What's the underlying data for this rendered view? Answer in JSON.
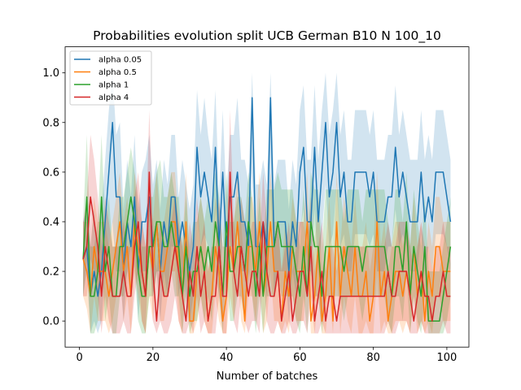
{
  "chart_data": {
    "type": "line",
    "title": "Probabilities evolution split UCB German B10 N 100_10",
    "xlabel": "Number of batches",
    "ylabel": "",
    "xlim": [
      -3.9,
      106
    ],
    "ylim": [
      -0.105,
      1.105
    ],
    "xticks": [
      0,
      20,
      40,
      60,
      80,
      100
    ],
    "yticks": [
      0.0,
      0.2,
      0.4,
      0.6,
      0.8,
      1.0
    ],
    "xtick_labels": [
      "0",
      "20",
      "40",
      "60",
      "80",
      "100"
    ],
    "ytick_labels": [
      "0.0",
      "0.2",
      "0.4",
      "0.6",
      "0.8",
      "1.0"
    ],
    "grid": false,
    "legend_position": "top-left",
    "x_start": 1,
    "series": [
      {
        "name": "alpha 0.05",
        "color": "#1f77b4",
        "values": [
          0.25,
          0.3,
          0.1,
          0.2,
          0.1,
          0.2,
          0.4,
          0.6,
          0.8,
          0.5,
          0.5,
          0.2,
          0.4,
          0.3,
          0.5,
          0.2,
          0.4,
          0.4,
          0.5,
          0.3,
          0.4,
          0.2,
          0.4,
          0.3,
          0.5,
          0.5,
          0.3,
          0.4,
          0.3,
          0.2,
          0.3,
          0.7,
          0.5,
          0.6,
          0.5,
          0.4,
          0.7,
          0.3,
          0.6,
          0.3,
          0.5,
          0.5,
          0.6,
          0.4,
          0.4,
          0.3,
          0.9,
          0.3,
          0.3,
          0.4,
          0.3,
          0.9,
          0.3,
          0.4,
          0.4,
          0.4,
          0.2,
          0.4,
          0.3,
          0.6,
          0.7,
          0.4,
          0.4,
          0.7,
          0.4,
          0.6,
          0.8,
          0.5,
          0.6,
          0.8,
          0.5,
          0.6,
          0.4,
          0.4,
          0.6,
          0.6,
          0.6,
          0.6,
          0.5,
          0.6,
          0.4,
          0.4,
          0.4,
          0.5,
          0.5,
          0.7,
          0.5,
          0.6,
          0.5,
          0.4,
          0.4,
          0.4,
          0.6,
          0.4,
          0.5,
          0.4,
          0.6,
          0.6,
          0.6,
          0.5,
          0.4
        ],
        "lower": [
          0.1,
          0.2,
          -0.05,
          0.0,
          -0.05,
          0.0,
          0.2,
          0.3,
          0.4,
          0.2,
          0.2,
          0.0,
          0.2,
          0.1,
          0.3,
          0.0,
          0.2,
          0.2,
          0.3,
          0.1,
          0.2,
          0.0,
          0.2,
          0.1,
          0.3,
          0.3,
          0.1,
          0.2,
          0.1,
          0.0,
          0.1,
          0.45,
          0.3,
          0.35,
          0.3,
          0.2,
          0.45,
          0.1,
          0.35,
          0.1,
          0.3,
          0.3,
          0.35,
          0.2,
          0.2,
          0.1,
          0.6,
          0.1,
          0.1,
          0.2,
          0.1,
          0.55,
          0.1,
          0.2,
          0.2,
          0.2,
          0.0,
          0.2,
          0.1,
          0.35,
          0.45,
          0.2,
          0.2,
          0.45,
          0.2,
          0.35,
          0.55,
          0.3,
          0.35,
          0.55,
          0.3,
          0.35,
          0.2,
          0.2,
          0.35,
          0.35,
          0.35,
          0.35,
          0.3,
          0.35,
          0.2,
          0.2,
          0.2,
          0.3,
          0.3,
          0.45,
          0.3,
          0.35,
          0.3,
          0.2,
          0.2,
          0.2,
          0.35,
          0.2,
          0.3,
          0.2,
          0.35,
          0.35,
          0.35,
          0.3,
          0.2
        ],
        "upper": [
          0.4,
          0.45,
          0.3,
          0.45,
          0.3,
          0.45,
          0.65,
          0.85,
          1.0,
          0.75,
          0.8,
          0.45,
          0.65,
          0.5,
          0.75,
          0.45,
          0.6,
          0.65,
          0.75,
          0.55,
          0.65,
          0.45,
          0.65,
          0.55,
          0.75,
          0.75,
          0.5,
          0.65,
          0.55,
          0.45,
          0.55,
          0.93,
          0.75,
          0.9,
          0.75,
          0.65,
          0.93,
          0.5,
          0.85,
          0.5,
          0.75,
          0.75,
          0.9,
          0.65,
          0.65,
          0.55,
          1.0,
          0.55,
          0.55,
          0.65,
          0.55,
          1.0,
          0.55,
          0.65,
          0.65,
          0.65,
          0.45,
          0.65,
          0.55,
          0.85,
          0.95,
          0.65,
          0.65,
          0.95,
          0.65,
          0.85,
          1.0,
          0.75,
          0.85,
          1.0,
          0.75,
          0.85,
          0.65,
          0.65,
          0.85,
          0.85,
          0.85,
          0.85,
          0.75,
          0.85,
          0.65,
          0.65,
          0.65,
          0.75,
          0.75,
          0.95,
          0.75,
          0.85,
          0.75,
          0.65,
          0.65,
          0.65,
          0.85,
          0.65,
          0.75,
          0.65,
          0.85,
          0.85,
          0.85,
          0.75,
          0.65
        ]
      },
      {
        "name": "alpha 0.5",
        "color": "#ff7f0e",
        "values": [
          0.25,
          0.2,
          0.1,
          0.3,
          0.2,
          0.2,
          0.2,
          0.1,
          0.2,
          0.3,
          0.4,
          0.2,
          0.3,
          0.1,
          0.4,
          0.3,
          0.2,
          0.1,
          0.3,
          0.2,
          0.4,
          0.2,
          0.2,
          0.3,
          0.4,
          0.4,
          0.2,
          0.1,
          0.4,
          0.0,
          0.0,
          0.2,
          0.3,
          0.2,
          0.0,
          0.1,
          0.3,
          0.2,
          0.0,
          0.1,
          0.3,
          0.2,
          0.4,
          0.2,
          0.0,
          0.3,
          0.3,
          0.2,
          0.4,
          0.1,
          0.2,
          0.4,
          0.2,
          0.2,
          0.0,
          0.2,
          0.1,
          0.3,
          0.2,
          0.2,
          0.2,
          0.4,
          0.0,
          0.1,
          0.3,
          0.0,
          0.1,
          0.3,
          0.0,
          0.4,
          0.1,
          0.3,
          0.2,
          0.1,
          0.3,
          0.1,
          0.1,
          0.2,
          0.0,
          0.1,
          0.4,
          0.1,
          0.2,
          0.0,
          0.1,
          0.2,
          0.2,
          0.1,
          0.2,
          0.1,
          0.3,
          0.1,
          0.2,
          0.0,
          0.2,
          0.1,
          0.3,
          0.3,
          0.2,
          0.2,
          0.2
        ],
        "lower": [
          0.1,
          0.05,
          -0.05,
          0.1,
          0.0,
          0.0,
          0.0,
          -0.05,
          0.0,
          0.1,
          0.2,
          0.0,
          0.1,
          -0.05,
          0.2,
          0.1,
          0.0,
          -0.05,
          0.1,
          0.0,
          0.2,
          0.0,
          0.0,
          0.1,
          0.2,
          0.2,
          0.0,
          -0.05,
          0.2,
          -0.05,
          -0.05,
          0.0,
          0.1,
          0.0,
          -0.05,
          -0.05,
          0.1,
          0.0,
          -0.05,
          -0.05,
          0.1,
          0.0,
          0.2,
          0.0,
          -0.05,
          0.1,
          0.1,
          0.0,
          0.2,
          -0.05,
          0.0,
          0.2,
          0.0,
          0.0,
          -0.05,
          0.0,
          -0.05,
          0.1,
          0.0,
          0.0,
          0.0,
          0.2,
          -0.05,
          -0.05,
          0.1,
          -0.05,
          -0.05,
          0.1,
          -0.05,
          0.2,
          -0.05,
          0.1,
          0.0,
          -0.05,
          0.1,
          -0.05,
          -0.05,
          0.0,
          -0.05,
          -0.05,
          0.2,
          -0.05,
          0.0,
          -0.05,
          -0.05,
          0.0,
          0.0,
          -0.05,
          0.0,
          -0.05,
          0.1,
          -0.05,
          0.0,
          -0.05,
          0.0,
          -0.05,
          0.1,
          0.1,
          0.0,
          0.0,
          0.0
        ],
        "upper": [
          0.4,
          0.4,
          0.3,
          0.5,
          0.4,
          0.4,
          0.4,
          0.3,
          0.4,
          0.5,
          0.6,
          0.4,
          0.5,
          0.3,
          0.6,
          0.5,
          0.4,
          0.3,
          0.5,
          0.4,
          0.6,
          0.4,
          0.4,
          0.5,
          0.6,
          0.6,
          0.4,
          0.3,
          0.6,
          0.2,
          0.2,
          0.4,
          0.5,
          0.4,
          0.2,
          0.3,
          0.5,
          0.4,
          0.2,
          0.3,
          0.5,
          0.4,
          0.6,
          0.4,
          0.2,
          0.5,
          0.5,
          0.4,
          0.6,
          0.3,
          0.4,
          0.6,
          0.4,
          0.4,
          0.2,
          0.4,
          0.3,
          0.5,
          0.4,
          0.4,
          0.4,
          0.6,
          0.2,
          0.3,
          0.5,
          0.2,
          0.3,
          0.5,
          0.2,
          0.6,
          0.3,
          0.5,
          0.4,
          0.3,
          0.5,
          0.3,
          0.3,
          0.4,
          0.2,
          0.3,
          0.6,
          0.3,
          0.4,
          0.2,
          0.3,
          0.4,
          0.4,
          0.3,
          0.4,
          0.3,
          0.5,
          0.3,
          0.4,
          0.2,
          0.4,
          0.3,
          0.5,
          0.5,
          0.4,
          0.4,
          0.4
        ]
      },
      {
        "name": "alpha 1",
        "color": "#2ca02c",
        "values": [
          0.25,
          0.5,
          0.1,
          0.1,
          0.2,
          0.5,
          0.2,
          0.3,
          0.1,
          0.1,
          0.3,
          0.3,
          0.4,
          0.5,
          0.4,
          0.2,
          0.1,
          0.1,
          0.3,
          0.3,
          0.4,
          0.4,
          0.3,
          0.3,
          0.4,
          0.3,
          0.3,
          0.1,
          0.3,
          0.1,
          0.2,
          0.2,
          0.3,
          0.2,
          0.3,
          0.2,
          0.4,
          0.3,
          0.1,
          0.4,
          0.2,
          0.2,
          0.3,
          0.3,
          0.2,
          0.4,
          0.3,
          0.1,
          0.3,
          0.1,
          0.3,
          0.3,
          0.3,
          0.4,
          0.3,
          0.3,
          0.3,
          0.3,
          0.2,
          0.1,
          0.3,
          0.1,
          0.4,
          0.3,
          0.3,
          0.1,
          0.3,
          0.3,
          0.3,
          0.3,
          0.3,
          0.2,
          0.3,
          0.3,
          0.3,
          0.3,
          0.2,
          0.3,
          0.3,
          0.3,
          0.3,
          0.3,
          0.3,
          0.2,
          0.1,
          0.3,
          0.3,
          0.2,
          0.4,
          0.1,
          0.3,
          0.2,
          0.1,
          0.3,
          0.0,
          0.0,
          0.0,
          0.0,
          0.1,
          0.2,
          0.3
        ],
        "lower": [
          0.1,
          0.25,
          -0.05,
          -0.05,
          0.0,
          0.25,
          0.0,
          0.1,
          -0.05,
          -0.05,
          0.1,
          0.1,
          0.2,
          0.3,
          0.2,
          0.0,
          -0.05,
          -0.05,
          0.1,
          0.1,
          0.2,
          0.2,
          0.1,
          0.1,
          0.2,
          0.1,
          0.1,
          -0.05,
          0.1,
          -0.05,
          0.0,
          0.0,
          0.1,
          0.0,
          0.1,
          0.0,
          0.2,
          0.1,
          -0.05,
          0.2,
          0.0,
          0.0,
          0.1,
          0.1,
          0.0,
          0.2,
          0.1,
          -0.05,
          0.1,
          -0.05,
          0.1,
          0.1,
          0.1,
          0.2,
          0.1,
          0.1,
          0.1,
          0.1,
          0.0,
          -0.05,
          0.1,
          -0.05,
          0.2,
          0.1,
          0.1,
          -0.05,
          0.1,
          0.1,
          0.1,
          0.1,
          0.1,
          0.0,
          0.1,
          0.1,
          0.1,
          0.1,
          0.0,
          0.1,
          0.1,
          0.1,
          0.1,
          0.1,
          0.1,
          0.0,
          -0.05,
          0.1,
          0.1,
          0.0,
          0.2,
          -0.05,
          0.1,
          0.0,
          -0.05,
          0.1,
          -0.05,
          -0.05,
          -0.05,
          -0.05,
          -0.05,
          0.0,
          0.1
        ],
        "upper": [
          0.4,
          0.75,
          0.3,
          0.3,
          0.4,
          0.75,
          0.4,
          0.5,
          0.3,
          0.3,
          0.5,
          0.5,
          0.6,
          0.7,
          0.6,
          0.4,
          0.3,
          0.3,
          0.5,
          0.5,
          0.6,
          0.65,
          0.5,
          0.5,
          0.6,
          0.5,
          0.5,
          0.3,
          0.5,
          0.3,
          0.4,
          0.4,
          0.5,
          0.4,
          0.5,
          0.4,
          0.6,
          0.5,
          0.3,
          0.6,
          0.4,
          0.4,
          0.5,
          0.5,
          0.4,
          0.6,
          0.5,
          0.3,
          0.5,
          0.3,
          0.53,
          0.53,
          0.53,
          0.6,
          0.53,
          0.53,
          0.53,
          0.53,
          0.4,
          0.3,
          0.53,
          0.3,
          0.6,
          0.53,
          0.53,
          0.3,
          0.53,
          0.53,
          0.53,
          0.53,
          0.53,
          0.4,
          0.53,
          0.53,
          0.53,
          0.53,
          0.4,
          0.53,
          0.53,
          0.53,
          0.53,
          0.53,
          0.53,
          0.4,
          0.3,
          0.53,
          0.53,
          0.4,
          0.6,
          0.3,
          0.53,
          0.4,
          0.3,
          0.5,
          0.2,
          0.2,
          0.2,
          0.2,
          0.3,
          0.4,
          0.5
        ]
      },
      {
        "name": "alpha 4",
        "color": "#d62728",
        "values": [
          0.25,
          0.3,
          0.5,
          0.4,
          0.3,
          0.1,
          0.3,
          0.2,
          0.1,
          0.1,
          0.1,
          0.2,
          0.1,
          0.1,
          0.3,
          0.4,
          0.2,
          0.1,
          0.6,
          0.2,
          0.0,
          0.2,
          0.1,
          0.1,
          0.2,
          0.3,
          0.2,
          0.1,
          0.0,
          0.2,
          0.1,
          0.3,
          0.1,
          0.2,
          0.0,
          0.1,
          0.1,
          0.3,
          0.1,
          0.1,
          0.6,
          0.2,
          0.1,
          0.3,
          0.2,
          0.1,
          0.2,
          0.2,
          0.1,
          0.4,
          0.2,
          0.1,
          0.1,
          0.2,
          0.0,
          0.1,
          0.2,
          0.0,
          0.1,
          0.2,
          0.2,
          0.1,
          0.3,
          0.0,
          0.1,
          0.2,
          0.0,
          0.1,
          0.1,
          0.0,
          0.1,
          0.1,
          0.1,
          0.1,
          0.1,
          0.1,
          0.1,
          0.1,
          0.1,
          0.1,
          0.1,
          0.1,
          0.1,
          0.2,
          0.1,
          0.1,
          0.2,
          0.2,
          0.2,
          0.1,
          0.0,
          0.1,
          0.2,
          0.1,
          0.1,
          0.0,
          0.1,
          0.1,
          0.2,
          0.1,
          0.1
        ],
        "lower": [
          0.1,
          0.1,
          0.25,
          0.2,
          0.1,
          -0.05,
          0.1,
          0.0,
          -0.05,
          -0.05,
          -0.05,
          0.0,
          -0.05,
          -0.05,
          0.1,
          0.2,
          0.0,
          -0.05,
          0.35,
          0.0,
          -0.05,
          0.0,
          -0.05,
          -0.05,
          0.0,
          0.1,
          0.0,
          -0.05,
          -0.05,
          0.0,
          -0.05,
          0.1,
          -0.05,
          0.0,
          -0.05,
          -0.05,
          -0.05,
          0.1,
          -0.05,
          -0.05,
          0.35,
          0.0,
          -0.05,
          0.1,
          0.0,
          -0.05,
          0.0,
          0.0,
          -0.05,
          0.2,
          0.0,
          -0.05,
          -0.05,
          0.0,
          -0.05,
          -0.05,
          0.0,
          -0.05,
          -0.05,
          0.0,
          0.0,
          -0.05,
          0.1,
          -0.05,
          -0.05,
          0.0,
          -0.05,
          -0.05,
          -0.05,
          -0.05,
          -0.05,
          -0.05,
          -0.05,
          -0.05,
          -0.05,
          -0.05,
          -0.05,
          -0.05,
          -0.05,
          -0.05,
          -0.05,
          -0.05,
          -0.05,
          0.0,
          -0.05,
          -0.05,
          0.0,
          0.0,
          0.0,
          -0.05,
          -0.05,
          -0.05,
          0.0,
          -0.05,
          -0.05,
          -0.05,
          -0.05,
          -0.05,
          0.0,
          -0.05,
          -0.05
        ],
        "upper": [
          0.4,
          0.5,
          0.75,
          0.65,
          0.5,
          0.3,
          0.5,
          0.4,
          0.3,
          0.3,
          0.3,
          0.4,
          0.3,
          0.3,
          0.5,
          0.6,
          0.4,
          0.3,
          0.85,
          0.4,
          0.2,
          0.4,
          0.3,
          0.3,
          0.4,
          0.5,
          0.4,
          0.3,
          0.2,
          0.4,
          0.3,
          0.5,
          0.3,
          0.4,
          0.2,
          0.3,
          0.3,
          0.5,
          0.3,
          0.3,
          0.85,
          0.4,
          0.3,
          0.5,
          0.4,
          0.3,
          0.4,
          0.4,
          0.3,
          0.6,
          0.4,
          0.3,
          0.3,
          0.4,
          0.2,
          0.3,
          0.4,
          0.2,
          0.3,
          0.4,
          0.4,
          0.3,
          0.5,
          0.2,
          0.3,
          0.4,
          0.2,
          0.3,
          0.3,
          0.2,
          0.3,
          0.3,
          0.3,
          0.3,
          0.3,
          0.3,
          0.3,
          0.3,
          0.3,
          0.3,
          0.3,
          0.3,
          0.3,
          0.4,
          0.3,
          0.3,
          0.4,
          0.4,
          0.4,
          0.3,
          0.2,
          0.3,
          0.4,
          0.3,
          0.3,
          0.2,
          0.3,
          0.3,
          0.4,
          0.3,
          0.3
        ]
      }
    ]
  }
}
